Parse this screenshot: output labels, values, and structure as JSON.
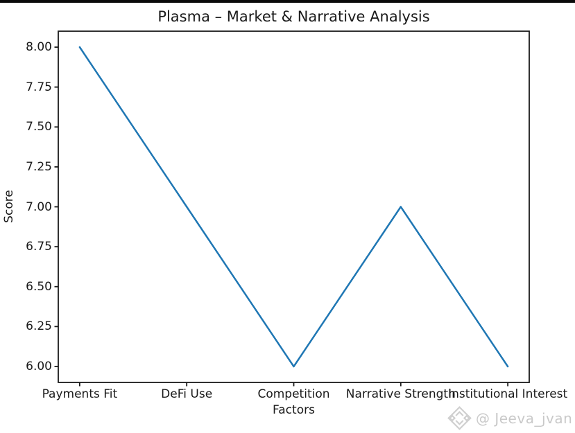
{
  "title": "Plasma – Market & Narrative Analysis",
  "watermark": {
    "handle": "@ Jeeva_jvan",
    "icon": "diamond-logo-icon",
    "color": "#c9c9c9"
  },
  "chart_data": {
    "type": "line",
    "title": "Plasma – Market & Narrative Analysis",
    "xlabel": "Factors",
    "ylabel": "Score",
    "categories": [
      "Payments Fit",
      "DeFi Use",
      "Competition",
      "Narrative Strength",
      "Institutional Interest"
    ],
    "values": [
      8.0,
      7.0,
      6.0,
      7.0,
      6.0
    ],
    "ylim": [
      5.9,
      8.1
    ],
    "yticks": [
      6.0,
      6.25,
      6.5,
      6.75,
      7.0,
      7.25,
      7.5,
      7.75,
      8.0
    ],
    "ytick_labels": [
      "6.00",
      "6.25",
      "6.50",
      "6.75",
      "7.00",
      "7.25",
      "7.50",
      "7.75",
      "8.00"
    ],
    "line_color": "#1f77b4",
    "grid": false,
    "legend": null
  }
}
